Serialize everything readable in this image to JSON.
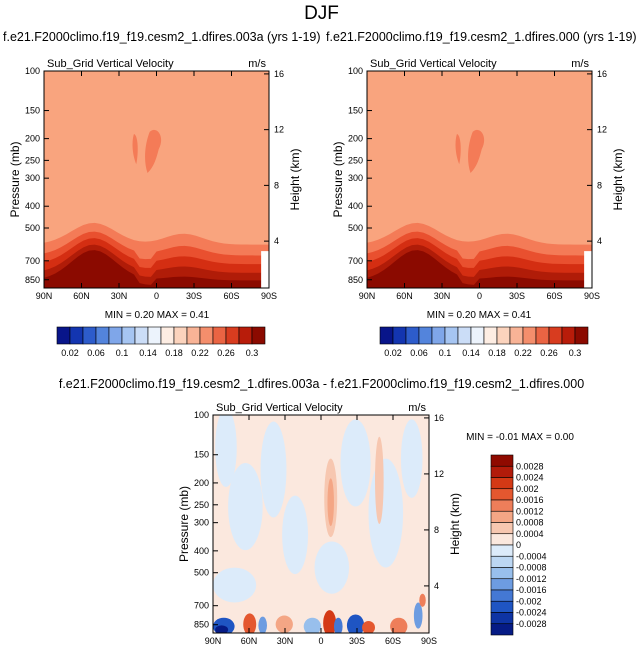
{
  "page": {
    "title": "DJF"
  },
  "colors": {
    "plot_fill": "#F9A47E",
    "core_fill": "#F47B57",
    "pos_scale": [
      "#FDE5D6",
      "#FCCDB4",
      "#F9A47E",
      "#F47B57",
      "#E9502F",
      "#D42E12",
      "#B01C08",
      "#8B0A00"
    ],
    "diff_pos": [
      "#FBE8DE",
      "#F7C7B0",
      "#F4A685",
      "#EE7E5A",
      "#E4572F",
      "#D43915",
      "#B21B0A",
      "#8F0A00"
    ],
    "diff_neg": [
      "#DCEBFA",
      "#BCD7F3",
      "#98BFEC",
      "#6D9CE1",
      "#4478D4",
      "#1F55C3",
      "#0E34A4",
      "#061B85"
    ]
  },
  "panels": [
    {
      "title": "f.e21.F2000climo.f19_f19.cesm2_1.dfires.003a (yrs 1-19)",
      "subtitle": "Sub_Grid Vertical Velocity",
      "units": "m/s",
      "ylabel": "Pressure (mb)",
      "y2label": "Height (km)",
      "stats": "MIN =  0.20  MAX =  0.41"
    },
    {
      "title": "f.e21.F2000climo.f19_f19.cesm2_1.dfires.000 (yrs 1-19)",
      "subtitle": "Sub_Grid Vertical Velocity",
      "units": "m/s",
      "ylabel": "Pressure (mb)",
      "y2label": "Height (km)",
      "stats": "MIN =  0.20  MAX =  0.41"
    },
    {
      "title": "f.e21.F2000climo.f19_f19.cesm2_1.dfires.003a - f.e21.F2000climo.f19_f19.cesm2_1.dfires.000",
      "subtitle": "Sub_Grid Vertical Velocity",
      "units": "m/s",
      "ylabel": "Pressure (mb)",
      "y2label": "Height (km)",
      "stats": "MIN =  -0.01  MAX =  0.00"
    }
  ],
  "chart_data": [
    {
      "type": "heatmap",
      "title": "f.e21.F2000climo.f19_f19.cesm2_1.dfires.003a (yrs 1-19)",
      "x_ticks": [
        "90N",
        "60N",
        "30N",
        "0",
        "30S",
        "60S",
        "90S"
      ],
      "y_ticks": [
        "100",
        "150",
        "200",
        "250",
        "300",
        "400",
        "500",
        "700",
        "850"
      ],
      "y2_ticks": [
        "4",
        "8",
        "12",
        "16"
      ],
      "ylim": [
        100,
        925
      ],
      "y_scale": "log",
      "min": 0.2,
      "max": 0.41,
      "colorbar": [
        "0.02",
        "0.06",
        "0.1",
        "0.14",
        "0.18",
        "0.22",
        "0.26",
        "0.3"
      ]
    },
    {
      "type": "heatmap",
      "title": "f.e21.F2000climo.f19_f19.cesm2_1.dfires.000 (yrs 1-19)",
      "x_ticks": [
        "90N",
        "60N",
        "30N",
        "0",
        "30S",
        "60S",
        "90S"
      ],
      "y_ticks": [
        "100",
        "150",
        "200",
        "250",
        "300",
        "400",
        "500",
        "700",
        "850"
      ],
      "y2_ticks": [
        "4",
        "8",
        "12",
        "16"
      ],
      "ylim": [
        100,
        925
      ],
      "y_scale": "log",
      "min": 0.2,
      "max": 0.41,
      "colorbar": [
        "0.02",
        "0.06",
        "0.1",
        "0.14",
        "0.18",
        "0.22",
        "0.26",
        "0.3"
      ]
    },
    {
      "type": "heatmap",
      "title": "f.e21.F2000climo.f19_f19.cesm2_1.dfires.003a - f.e21.F2000climo.f19_f19.cesm2_1.dfires.000",
      "x_ticks": [
        "90N",
        "60N",
        "30N",
        "0",
        "30S",
        "60S",
        "90S"
      ],
      "y_ticks": [
        "100",
        "150",
        "200",
        "250",
        "300",
        "400",
        "500",
        "700",
        "850"
      ],
      "y2_ticks": [
        "4",
        "8",
        "12",
        "16"
      ],
      "ylim": [
        100,
        925
      ],
      "y_scale": "log",
      "min": -0.01,
      "max": 0.0,
      "colorbar": [
        "0.0028",
        "0.0024",
        "0.002",
        "0.0016",
        "0.0012",
        "0.0008",
        "0.0004",
        "0",
        "-0.0004",
        "-0.0008",
        "-0.0012",
        "-0.0016",
        "-0.002",
        "-0.0024",
        "-0.0028"
      ]
    }
  ]
}
